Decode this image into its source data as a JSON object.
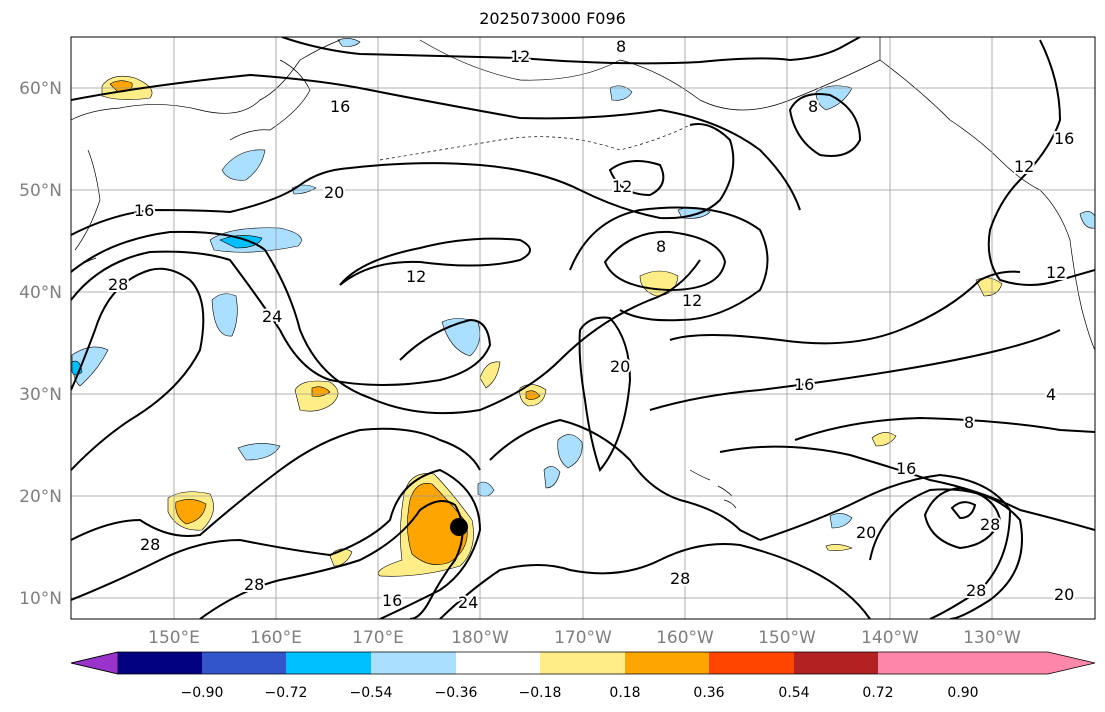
{
  "title": "2025073000 F096",
  "lat_ticks": [
    "10°N",
    "20°N",
    "30°N",
    "40°N",
    "50°N",
    "60°N"
  ],
  "lon_ticks": [
    "150°E",
    "160°E",
    "170°E",
    "180°W",
    "170°W",
    "160°W",
    "150°W",
    "140°W",
    "130°W"
  ],
  "colorbar": {
    "colors": [
      "#9933cc",
      "#000080",
      "#3355cc",
      "#00bfff",
      "#aadfff",
      "#ffffff",
      "#ffee88",
      "#ffa500",
      "#ff4500",
      "#b22222",
      "#ff88aa"
    ],
    "labels": [
      "−0.90",
      "−0.72",
      "−0.54",
      "−0.36",
      "−0.18",
      "0.18",
      "0.36",
      "0.54",
      "0.72",
      "0.90"
    ]
  },
  "contour_labels": [
    {
      "text": "12"
    },
    {
      "text": "8"
    },
    {
      "text": "16"
    },
    {
      "text": "20"
    },
    {
      "text": "12"
    },
    {
      "text": "16"
    },
    {
      "text": "28"
    },
    {
      "text": "24"
    },
    {
      "text": "12"
    },
    {
      "text": "8"
    },
    {
      "text": "12"
    },
    {
      "text": "20"
    },
    {
      "text": "16"
    },
    {
      "text": "8"
    },
    {
      "text": "16"
    },
    {
      "text": "28"
    },
    {
      "text": "20"
    },
    {
      "text": "28"
    },
    {
      "text": "28"
    },
    {
      "text": "16"
    },
    {
      "text": "24"
    },
    {
      "text": "28"
    },
    {
      "text": "28"
    },
    {
      "text": "20"
    },
    {
      "text": "16"
    },
    {
      "text": "12"
    },
    {
      "text": "12"
    },
    {
      "text": "4"
    },
    {
      "text": "8"
    }
  ],
  "marker": {
    "label": "storm-center-marker"
  }
}
